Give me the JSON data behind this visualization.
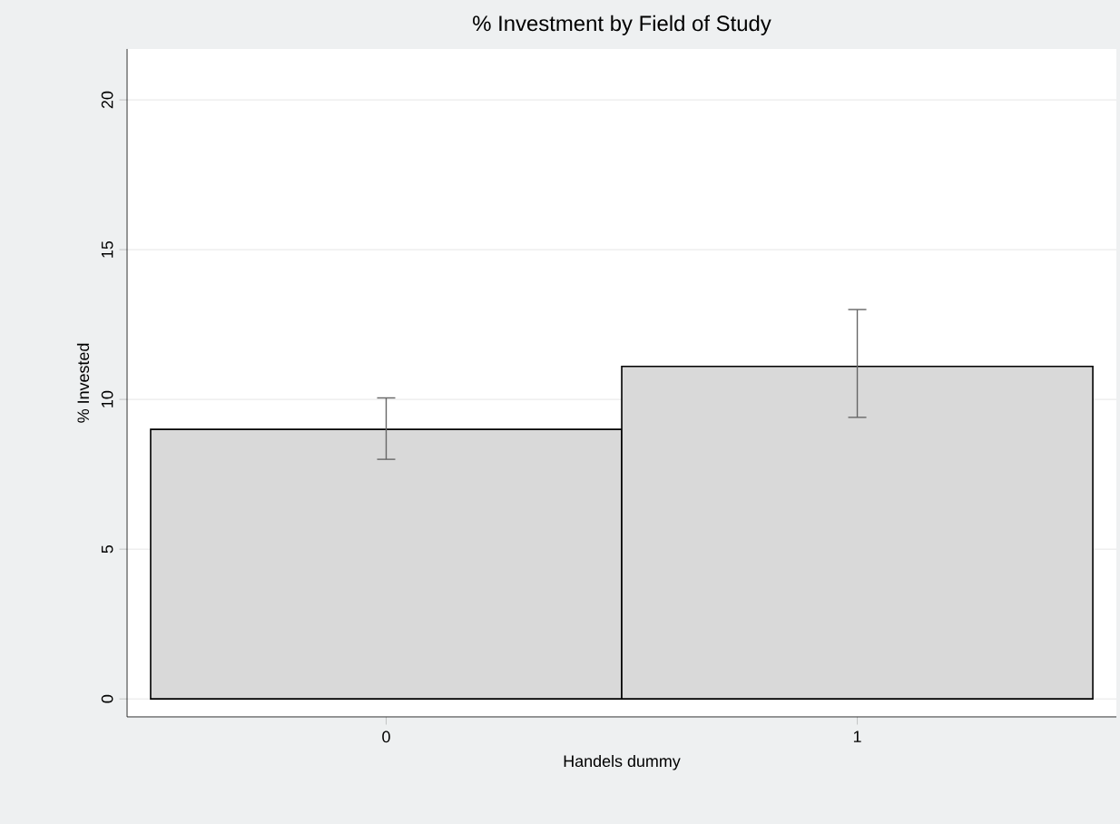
{
  "chart_data": {
    "type": "bar",
    "title": "% Investment by Field of Study",
    "xlabel": "Handels dummy",
    "ylabel": "% Invested",
    "categories": [
      "0",
      "1"
    ],
    "values": [
      9.0,
      11.1
    ],
    "color": "#d9d9d9",
    "errors": [
      [
        8.0,
        10.05
      ],
      [
        9.4,
        13.0
      ]
    ],
    "ylim": [
      -0.6,
      21.7
    ],
    "yticks": [
      0,
      5,
      10,
      15,
      20
    ],
    "grid": "y"
  }
}
